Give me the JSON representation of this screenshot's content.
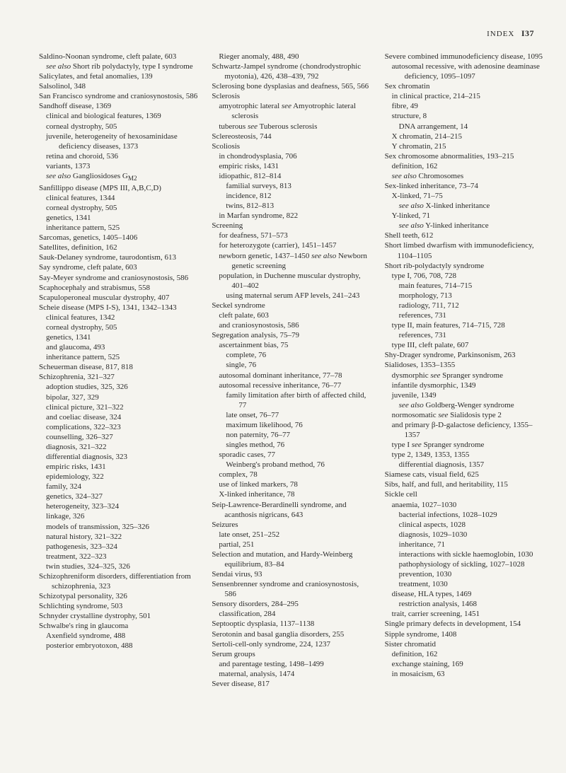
{
  "header": {
    "index_label": "INDEX",
    "page_number": "I37"
  },
  "columns": [
    [
      {
        "t": "Saldino-Noonan syndrome, cleft palate, 603",
        "i": 0
      },
      {
        "t": "<em>see also</em> Short rib polydactyly, type I syndrome",
        "i": 1
      },
      {
        "t": "Salicylates, and fetal anomalies, 139",
        "i": 0
      },
      {
        "t": "Salsolinol, 348",
        "i": 0
      },
      {
        "t": "San Francisco syndrome and craniosynostosis, 586",
        "i": 0
      },
      {
        "t": "Sandhoff disease, 1369",
        "i": 0
      },
      {
        "t": "clinical and biological features, 1369",
        "i": 1
      },
      {
        "t": "corneal dystrophy, 505",
        "i": 1
      },
      {
        "t": "juvenile, heterogeneity of hexosaminidase deficiency diseases, 1373",
        "i": 1
      },
      {
        "t": "retina and choroid, 536",
        "i": 1
      },
      {
        "t": "variants, 1373",
        "i": 1
      },
      {
        "t": "<em>see also</em> Gangliosidoses G<sub>M2</sub>",
        "i": 1
      },
      {
        "t": "Sanfillippo disease (MPS III, A,B,C,D)",
        "i": 0
      },
      {
        "t": "clinical features, 1344",
        "i": 1
      },
      {
        "t": "corneal dystrophy, 505",
        "i": 1
      },
      {
        "t": "genetics, 1341",
        "i": 1
      },
      {
        "t": "inheritance pattern, 525",
        "i": 1
      },
      {
        "t": "Sarcomas, genetics, 1405–1406",
        "i": 0
      },
      {
        "t": "Satellites, definition, 162",
        "i": 0
      },
      {
        "t": "Sauk-Delaney syndrome, taurodontism, 613",
        "i": 0
      },
      {
        "t": "Say syndrome, cleft palate, 603",
        "i": 0
      },
      {
        "t": "Say-Meyer syndrome and craniosynostosis, 586",
        "i": 0
      },
      {
        "t": "Scaphocephaly and strabismus, 558",
        "i": 0
      },
      {
        "t": "Scapuloperoneal muscular dystrophy, 407",
        "i": 0
      },
      {
        "t": "Scheie disease (MPS I-S), 1341, 1342–1343",
        "i": 0
      },
      {
        "t": "clinical features, 1342",
        "i": 1
      },
      {
        "t": "corneal dystrophy, 505",
        "i": 1
      },
      {
        "t": "genetics, 1341",
        "i": 1
      },
      {
        "t": "and glaucoma, 493",
        "i": 1
      },
      {
        "t": "inheritance pattern, 525",
        "i": 1
      },
      {
        "t": "Scheuerman disease, 817, 818",
        "i": 0
      },
      {
        "t": "Schizophrenia, 321–327",
        "i": 0
      },
      {
        "t": "adoption studies, 325, 326",
        "i": 1
      },
      {
        "t": "bipolar, 327, 329",
        "i": 1
      },
      {
        "t": "clinical picture, 321–322",
        "i": 1
      },
      {
        "t": "and coeliac disease, 324",
        "i": 1
      },
      {
        "t": "complications, 322–323",
        "i": 1
      },
      {
        "t": "counselling, 326–327",
        "i": 1
      },
      {
        "t": "diagnosis, 321–322",
        "i": 1
      },
      {
        "t": "differential diagnosis, 323",
        "i": 1
      },
      {
        "t": "empiric risks, 1431",
        "i": 1
      },
      {
        "t": "epidemiology, 322",
        "i": 1
      },
      {
        "t": "family, 324",
        "i": 1
      },
      {
        "t": "genetics, 324–327",
        "i": 1
      },
      {
        "t": "heterogeneity, 323–324",
        "i": 1
      },
      {
        "t": "linkage, 326",
        "i": 1
      },
      {
        "t": "models of transmission, 325–326",
        "i": 1
      },
      {
        "t": "natural history, 321–322",
        "i": 1
      },
      {
        "t": "pathogenesis, 323–324",
        "i": 1
      },
      {
        "t": "treatment, 322–323",
        "i": 1
      },
      {
        "t": "twin studies, 324–325, 326",
        "i": 1
      },
      {
        "t": "Schizophreniform disorders, differentiation from schizophrenia, 323",
        "i": 0
      },
      {
        "t": "Schizotypal personality, 326",
        "i": 0
      },
      {
        "t": "Schlichting syndrome, 503",
        "i": 0
      },
      {
        "t": "Schnyder crystalline dystrophy, 501",
        "i": 0
      },
      {
        "t": "Schwalbe's ring in glaucoma",
        "i": 0
      },
      {
        "t": "Axenfield syndrome, 488",
        "i": 1
      },
      {
        "t": "posterior embryotoxon, 488",
        "i": 1
      }
    ],
    [
      {
        "t": "Rieger anomaly, 488, 490",
        "i": 1
      },
      {
        "t": "Schwartz-Jampel syndrome (chondrodystrophic myotonia), 426, 438–439, 792",
        "i": 0
      },
      {
        "t": "Sclerosing bone dysplasias and deafness, 565, 566",
        "i": 0
      },
      {
        "t": "Sclerosis",
        "i": 0
      },
      {
        "t": "amyotrophic lateral <em>see</em> Amyotrophic lateral sclerosis",
        "i": 1
      },
      {
        "t": "tuberous <em>see</em> Tuberous sclerosis",
        "i": 1
      },
      {
        "t": "Sclereosteosis, 744",
        "i": 0
      },
      {
        "t": "Scoliosis",
        "i": 0
      },
      {
        "t": "in chondrodysplasia, 706",
        "i": 1
      },
      {
        "t": "empiric risks, 1431",
        "i": 1
      },
      {
        "t": "idiopathic, 812–814",
        "i": 1
      },
      {
        "t": "familial surveys, 813",
        "i": 2
      },
      {
        "t": "incidence, 812",
        "i": 2
      },
      {
        "t": "twins, 812–813",
        "i": 2
      },
      {
        "t": "in Marfan syndrome, 822",
        "i": 1
      },
      {
        "t": "Screening",
        "i": 0
      },
      {
        "t": "for deafness, 571–573",
        "i": 1
      },
      {
        "t": "for heterozygote (carrier), 1451–1457",
        "i": 1
      },
      {
        "t": "newborn genetic, 1437–1450 <em>see also</em> Newborn genetic screening",
        "i": 1
      },
      {
        "t": "population, in Duchenne muscular dystrophy, 401–402",
        "i": 1
      },
      {
        "t": "using maternal serum AFP levels, 241–243",
        "i": 2
      },
      {
        "t": "Seckel syndrome",
        "i": 0
      },
      {
        "t": "cleft palate, 603",
        "i": 1
      },
      {
        "t": "and craniosynostosis, 586",
        "i": 1
      },
      {
        "t": "Segregation analysis, 75–79",
        "i": 0
      },
      {
        "t": "ascertainment bias, 75",
        "i": 1
      },
      {
        "t": "complete, 76",
        "i": 2
      },
      {
        "t": "single, 76",
        "i": 2
      },
      {
        "t": "autosomal dominant inheritance, 77–78",
        "i": 1
      },
      {
        "t": "autosomal recessive inheritance, 76–77",
        "i": 1
      },
      {
        "t": "family limitation after birth of affected child, 77",
        "i": 2
      },
      {
        "t": "late onset, 76–77",
        "i": 2
      },
      {
        "t": "maximum likelihood, 76",
        "i": 2
      },
      {
        "t": "non paternity, 76–77",
        "i": 2
      },
      {
        "t": "singles method, 76",
        "i": 2
      },
      {
        "t": "sporadic cases, 77",
        "i": 1
      },
      {
        "t": "Weinberg's proband method, 76",
        "i": 2
      },
      {
        "t": "complex, 78",
        "i": 1
      },
      {
        "t": "use of linked markers, 78",
        "i": 1
      },
      {
        "t": "X-linked inheritance, 78",
        "i": 1
      },
      {
        "t": "Seip-Lawrence-Berardinelli syndrome, and acanthosis nigricans, 643",
        "i": 0
      },
      {
        "t": "Seizures",
        "i": 0
      },
      {
        "t": "late onset, 251–252",
        "i": 1
      },
      {
        "t": "partial, 251",
        "i": 1
      },
      {
        "t": "Selection and mutation, and Hardy-Weinberg equilibrium, 83–84",
        "i": 0
      },
      {
        "t": "Sendai virus, 93",
        "i": 0
      },
      {
        "t": "Sensenbrenner syndrome and craniosynostosis, 586",
        "i": 0
      },
      {
        "t": "Sensory disorders, 284–295",
        "i": 0
      },
      {
        "t": "classification, 284",
        "i": 1
      },
      {
        "t": "Septooptic dysplasia, 1137–1138",
        "i": 0
      },
      {
        "t": "Serotonin and basal ganglia disorders, 255",
        "i": 0
      },
      {
        "t": "Sertoli-cell-only syndrome, 224, 1237",
        "i": 0
      },
      {
        "t": "Serum groups",
        "i": 0
      },
      {
        "t": "and parentage testing, 1498–1499",
        "i": 1
      },
      {
        "t": "maternal, analysis, 1474",
        "i": 1
      },
      {
        "t": "Sever disease, 817",
        "i": 0
      }
    ],
    [
      {
        "t": "Severe combined immunodeficiency disease, 1095",
        "i": 0
      },
      {
        "t": "autosomal recessive, with adenosine deaminase deficiency, 1095–1097",
        "i": 1
      },
      {
        "t": "Sex chromatin",
        "i": 0
      },
      {
        "t": "in clinical practice, 214–215",
        "i": 1
      },
      {
        "t": "fibre, 49",
        "i": 1
      },
      {
        "t": "structure, 8",
        "i": 1
      },
      {
        "t": "DNA arrangement, 14",
        "i": 2
      },
      {
        "t": "X chromatin, 214–215",
        "i": 1
      },
      {
        "t": "Y chromatin, 215",
        "i": 1
      },
      {
        "t": "Sex chromosome abnormalities, 193–215",
        "i": 0
      },
      {
        "t": "definition, 162",
        "i": 1
      },
      {
        "t": "<em>see also</em> Chromosomes",
        "i": 1
      },
      {
        "t": "Sex-linked inheritance, 73–74",
        "i": 0
      },
      {
        "t": "X-linked, 71–75",
        "i": 1
      },
      {
        "t": "<em>see also</em> X-linked inheritance",
        "i": 2
      },
      {
        "t": "Y-linked, 71",
        "i": 1
      },
      {
        "t": "<em>see also</em> Y-linked inheritance",
        "i": 2
      },
      {
        "t": "Shell teeth, 612",
        "i": 0
      },
      {
        "t": "Short limbed dwarfism with immunodeficiency, 1104–1105",
        "i": 0
      },
      {
        "t": "Short rib-polydactyly syndrome",
        "i": 0
      },
      {
        "t": "type I, 706, 708, 728",
        "i": 1
      },
      {
        "t": "main features, 714–715",
        "i": 2
      },
      {
        "t": "morphology, 713",
        "i": 2
      },
      {
        "t": "radiology, 711, 712",
        "i": 2
      },
      {
        "t": "references, 731",
        "i": 2
      },
      {
        "t": "type II, main features, 714–715, 728",
        "i": 1
      },
      {
        "t": "references, 731",
        "i": 2
      },
      {
        "t": "type III, cleft palate, 607",
        "i": 1
      },
      {
        "t": "Shy-Drager syndrome, Parkinsonism, 263",
        "i": 0
      },
      {
        "t": "Sialidoses, 1353–1355",
        "i": 0
      },
      {
        "t": "dysmorphic <em>see</em> Spranger syndrome",
        "i": 1
      },
      {
        "t": "infantile dysmorphic, 1349",
        "i": 1
      },
      {
        "t": "juvenile, 1349",
        "i": 1
      },
      {
        "t": "<em>see also</em> Goldberg-Wenger syndrome",
        "i": 2
      },
      {
        "t": "normosomatic <em>see</em> Sialidosis type 2",
        "i": 1
      },
      {
        "t": "and primary β-D-galactose deficiency, 1355–1357",
        "i": 1
      },
      {
        "t": "type I <em>see</em> Spranger syndrome",
        "i": 1
      },
      {
        "t": "type 2, 1349, 1353, 1355",
        "i": 1
      },
      {
        "t": "differential diagnosis, 1357",
        "i": 2
      },
      {
        "t": "Siamese cats, visual field, 625",
        "i": 0
      },
      {
        "t": "Sibs, half, and full, and heritability, 115",
        "i": 0
      },
      {
        "t": "Sickle cell",
        "i": 0
      },
      {
        "t": "anaemia, 1027–1030",
        "i": 1
      },
      {
        "t": "bacterial infections, 1028–1029",
        "i": 2
      },
      {
        "t": "clinical aspects, 1028",
        "i": 2
      },
      {
        "t": "diagnosis, 1029–1030",
        "i": 2
      },
      {
        "t": "inheritance, 71",
        "i": 2
      },
      {
        "t": "interactions with sickle haemoglobin, 1030",
        "i": 2
      },
      {
        "t": "pathophysiology of sickling, 1027–1028",
        "i": 2
      },
      {
        "t": "prevention, 1030",
        "i": 2
      },
      {
        "t": "treatment, 1030",
        "i": 2
      },
      {
        "t": "disease, HLA types, 1469",
        "i": 1
      },
      {
        "t": "restriction analysis, 1468",
        "i": 2
      },
      {
        "t": "trait, carrier screening, 1451",
        "i": 1
      },
      {
        "t": "Single primary defects in development, 154",
        "i": 0
      },
      {
        "t": "Sipple syndrome, 1408",
        "i": 0
      },
      {
        "t": "Sister chromatid",
        "i": 0
      },
      {
        "t": "definition, 162",
        "i": 1
      },
      {
        "t": "exchange staining, 169",
        "i": 1
      },
      {
        "t": "in mosaicism, 63",
        "i": 1
      }
    ]
  ]
}
